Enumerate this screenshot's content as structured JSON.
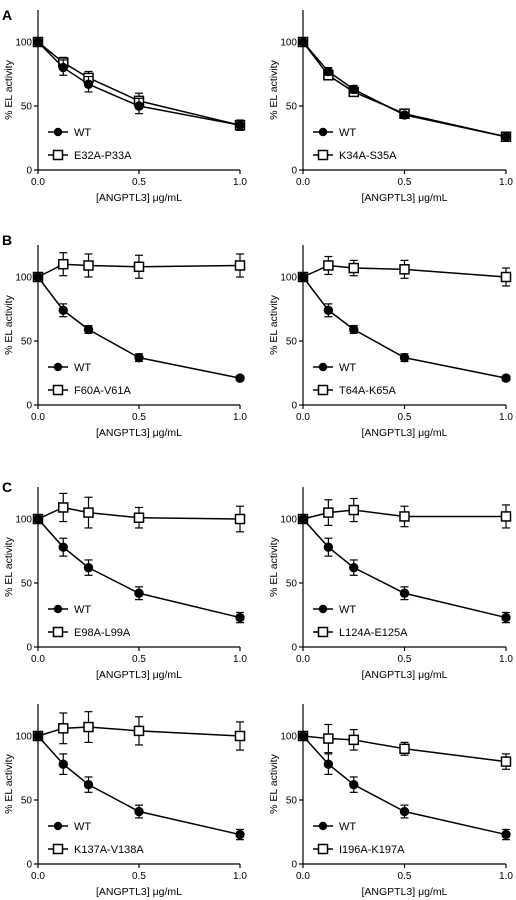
{
  "figure": {
    "panel_letters": [
      "A",
      "B",
      "C"
    ]
  },
  "chart_data": [
    {
      "type": "line",
      "panel": "A",
      "xlabel": "[ANGPTL3] μg/mL",
      "ylabel": "% EL activity",
      "xlim": [
        0,
        1.0
      ],
      "ylim": [
        0,
        125
      ],
      "xticks": [
        "0.0",
        "0.5",
        "1.0"
      ],
      "yticks": [
        "0",
        "50",
        "100"
      ],
      "legend_position": "bottom-left",
      "series": [
        {
          "name": "WT",
          "marker": "filled-circle",
          "x": [
            0,
            0.125,
            0.25,
            0.5,
            1.0
          ],
          "y": [
            100,
            80,
            67,
            50,
            35
          ],
          "err": [
            0,
            6,
            6,
            6,
            4
          ]
        },
        {
          "name": "E32A-P33A",
          "marker": "open-square",
          "x": [
            0,
            0.125,
            0.25,
            0.5,
            1.0
          ],
          "y": [
            100,
            84,
            72,
            54,
            35
          ],
          "err": [
            0,
            4,
            5,
            6,
            4
          ]
        }
      ]
    },
    {
      "type": "line",
      "panel": "",
      "xlabel": "[ANGPTL3] μg/mL",
      "ylabel": "% EL activity",
      "xlim": [
        0,
        1.0
      ],
      "ylim": [
        0,
        125
      ],
      "xticks": [
        "0.0",
        "0.5",
        "1.0"
      ],
      "yticks": [
        "0",
        "50",
        "100"
      ],
      "legend_position": "bottom-left",
      "series": [
        {
          "name": "WT",
          "marker": "filled-circle",
          "x": [
            0,
            0.125,
            0.25,
            0.5,
            1.0
          ],
          "y": [
            100,
            77,
            63,
            43,
            26
          ],
          "err": [
            0,
            3,
            3,
            2,
            2
          ]
        },
        {
          "name": "K34A-S35A",
          "marker": "open-square",
          "x": [
            0,
            0.125,
            0.25,
            0.5,
            1.0
          ],
          "y": [
            100,
            74,
            61,
            44,
            26
          ],
          "err": [
            0,
            3,
            2,
            2,
            2
          ]
        }
      ]
    },
    {
      "type": "line",
      "panel": "B",
      "xlabel": "[ANGPTL3] μg/mL",
      "ylabel": "% EL activity",
      "xlim": [
        0,
        1.0
      ],
      "ylim": [
        0,
        125
      ],
      "xticks": [
        "0.0",
        "0.5",
        "1.0"
      ],
      "yticks": [
        "0",
        "50",
        "100"
      ],
      "legend_position": "bottom-left",
      "series": [
        {
          "name": "WT",
          "marker": "filled-circle",
          "x": [
            0,
            0.125,
            0.25,
            0.5,
            1.0
          ],
          "y": [
            100,
            74,
            59,
            37,
            21
          ],
          "err": [
            0,
            5,
            3,
            3,
            2
          ]
        },
        {
          "name": "F60A-V61A",
          "marker": "open-square",
          "x": [
            0,
            0.125,
            0.25,
            0.5,
            1.0
          ],
          "y": [
            100,
            110,
            109,
            108,
            109
          ],
          "err": [
            0,
            9,
            9,
            9,
            9
          ]
        }
      ]
    },
    {
      "type": "line",
      "panel": "",
      "xlabel": "[ANGPTL3] μg/mL",
      "ylabel": "% EL activity",
      "xlim": [
        0,
        1.0
      ],
      "ylim": [
        0,
        125
      ],
      "xticks": [
        "0.0",
        "0.5",
        "1.0"
      ],
      "yticks": [
        "0",
        "50",
        "100"
      ],
      "legend_position": "bottom-left",
      "series": [
        {
          "name": "WT",
          "marker": "filled-circle",
          "x": [
            0,
            0.125,
            0.25,
            0.5,
            1.0
          ],
          "y": [
            100,
            74,
            59,
            37,
            21
          ],
          "err": [
            0,
            5,
            3,
            3,
            2
          ]
        },
        {
          "name": "T64A-K65A",
          "marker": "open-square",
          "x": [
            0,
            0.125,
            0.25,
            0.5,
            1.0
          ],
          "y": [
            100,
            109,
            107,
            106,
            100
          ],
          "err": [
            0,
            7,
            6,
            7,
            7
          ]
        }
      ]
    },
    {
      "type": "line",
      "panel": "C",
      "xlabel": "[ANGPTL3] μg/mL",
      "ylabel": "% EL activity",
      "xlim": [
        0,
        1.0
      ],
      "ylim": [
        0,
        125
      ],
      "xticks": [
        "0.0",
        "0.5",
        "1.0"
      ],
      "yticks": [
        "0",
        "50",
        "100"
      ],
      "legend_position": "bottom-left",
      "series": [
        {
          "name": "WT",
          "marker": "filled-circle",
          "x": [
            0,
            0.125,
            0.25,
            0.5,
            1.0
          ],
          "y": [
            100,
            78,
            62,
            42,
            23
          ],
          "err": [
            0,
            7,
            6,
            5,
            4
          ]
        },
        {
          "name": "E98A-L99A",
          "marker": "open-square",
          "x": [
            0,
            0.125,
            0.25,
            0.5,
            1.0
          ],
          "y": [
            100,
            109,
            105,
            101,
            100
          ],
          "err": [
            0,
            11,
            12,
            8,
            10
          ]
        }
      ]
    },
    {
      "type": "line",
      "panel": "",
      "xlabel": "[ANGPTL3] μg/mL",
      "ylabel": "% EL activity",
      "xlim": [
        0,
        1.0
      ],
      "ylim": [
        0,
        125
      ],
      "xticks": [
        "0.0",
        "0.5",
        "1.0"
      ],
      "yticks": [
        "0",
        "50",
        "100"
      ],
      "legend_position": "bottom-left",
      "series": [
        {
          "name": "WT",
          "marker": "filled-circle",
          "x": [
            0,
            0.125,
            0.25,
            0.5,
            1.0
          ],
          "y": [
            100,
            78,
            62,
            42,
            23
          ],
          "err": [
            0,
            7,
            6,
            5,
            4
          ]
        },
        {
          "name": "L124A-E125A",
          "marker": "open-square",
          "x": [
            0,
            0.125,
            0.25,
            0.5,
            1.0
          ],
          "y": [
            100,
            105,
            107,
            102,
            102
          ],
          "err": [
            0,
            10,
            9,
            8,
            9
          ]
        }
      ]
    },
    {
      "type": "line",
      "panel": "",
      "xlabel": "[ANGPTL3] μg/mL",
      "ylabel": "% EL activity",
      "xlim": [
        0,
        1.0
      ],
      "ylim": [
        0,
        125
      ],
      "xticks": [
        "0.0",
        "0.5",
        "1.0"
      ],
      "yticks": [
        "0",
        "50",
        "100"
      ],
      "legend_position": "bottom-left",
      "series": [
        {
          "name": "WT",
          "marker": "filled-circle",
          "x": [
            0,
            0.125,
            0.25,
            0.5,
            1.0
          ],
          "y": [
            100,
            78,
            62,
            41,
            23
          ],
          "err": [
            0,
            8,
            6,
            5,
            4
          ]
        },
        {
          "name": "K137A-V138A",
          "marker": "open-square",
          "x": [
            0,
            0.125,
            0.25,
            0.5,
            1.0
          ],
          "y": [
            100,
            106,
            107,
            104,
            100
          ],
          "err": [
            0,
            12,
            12,
            11,
            11
          ]
        }
      ]
    },
    {
      "type": "line",
      "panel": "",
      "xlabel": "[ANGPTL3] μg/mL",
      "ylabel": "% EL activity",
      "xlim": [
        0,
        1.0
      ],
      "ylim": [
        0,
        125
      ],
      "xticks": [
        "0.0",
        "0.5",
        "1.0"
      ],
      "yticks": [
        "0",
        "50",
        "100"
      ],
      "legend_position": "bottom-left",
      "series": [
        {
          "name": "WT",
          "marker": "filled-circle",
          "x": [
            0,
            0.125,
            0.25,
            0.5,
            1.0
          ],
          "y": [
            100,
            78,
            62,
            41,
            23
          ],
          "err": [
            0,
            8,
            6,
            5,
            4
          ]
        },
        {
          "name": "I196A-K197A",
          "marker": "open-square",
          "x": [
            0,
            0.125,
            0.25,
            0.5,
            1.0
          ],
          "y": [
            100,
            98,
            97,
            90,
            80
          ],
          "err": [
            0,
            11,
            8,
            5,
            6
          ]
        }
      ]
    }
  ]
}
